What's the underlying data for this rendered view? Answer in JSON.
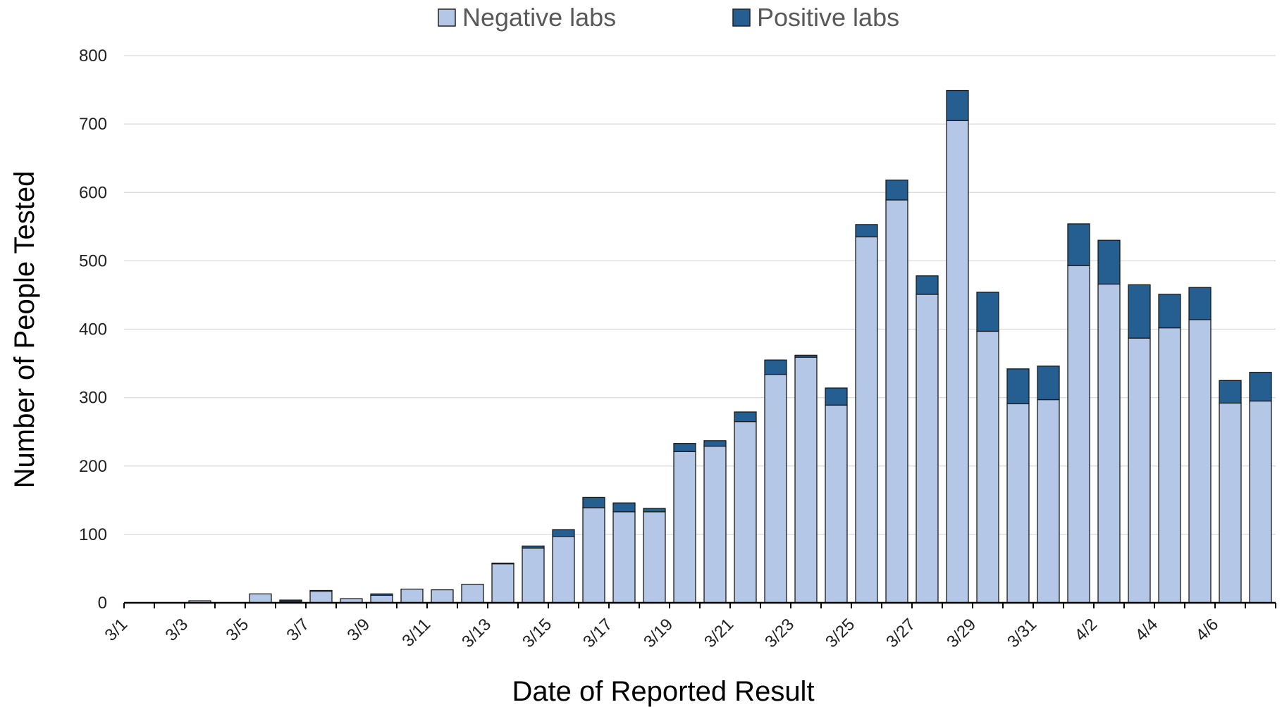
{
  "chart_data": {
    "type": "bar",
    "stacked": true,
    "title": "",
    "xlabel": "Date of Reported Result",
    "ylabel": "Number of People Tested",
    "ylim": [
      0,
      800
    ],
    "yticks": [
      0,
      100,
      200,
      300,
      400,
      500,
      600,
      700,
      800
    ],
    "grid": true,
    "legend_position": "top-center",
    "categories": [
      "3/1",
      "3/2",
      "3/3",
      "3/4",
      "3/5",
      "3/6",
      "3/7",
      "3/8",
      "3/9",
      "3/10",
      "3/11",
      "3/12",
      "3/13",
      "3/14",
      "3/15",
      "3/16",
      "3/17",
      "3/18",
      "3/19",
      "3/20",
      "3/21",
      "3/22",
      "3/23",
      "3/24",
      "3/25",
      "3/26",
      "3/27",
      "3/28",
      "3/29",
      "3/30",
      "3/31",
      "4/1",
      "4/2",
      "4/3",
      "4/4",
      "4/5",
      "4/6",
      "4/7"
    ],
    "xtick_labels": [
      "3/1",
      "",
      "3/3",
      "",
      "3/5",
      "",
      "3/7",
      "",
      "3/9",
      "",
      "3/11",
      "",
      "3/13",
      "",
      "3/15",
      "",
      "3/17",
      "",
      "3/19",
      "",
      "3/21",
      "",
      "3/23",
      "",
      "3/25",
      "",
      "3/27",
      "",
      "3/29",
      "",
      "3/31",
      "",
      "4/2",
      "",
      "4/4",
      "",
      "4/6",
      ""
    ],
    "series": [
      {
        "name": "Negative labs",
        "color": "#b4c7e7",
        "values": [
          0,
          0,
          3,
          0,
          13,
          2,
          17,
          6,
          11,
          20,
          19,
          27,
          57,
          80,
          97,
          139,
          133,
          133,
          221,
          229,
          265,
          334,
          359,
          289,
          535,
          589,
          451,
          705,
          397,
          291,
          297,
          493,
          466,
          387,
          402,
          414,
          292,
          295
        ]
      },
      {
        "name": "Positive labs",
        "color": "#255e91",
        "values": [
          0,
          0,
          0,
          0,
          0,
          2,
          1,
          0,
          2,
          0,
          0,
          0,
          1,
          3,
          10,
          15,
          13,
          5,
          12,
          8,
          14,
          21,
          3,
          25,
          18,
          29,
          27,
          44,
          57,
          51,
          49,
          61,
          64,
          78,
          49,
          47,
          33,
          42
        ]
      }
    ]
  }
}
